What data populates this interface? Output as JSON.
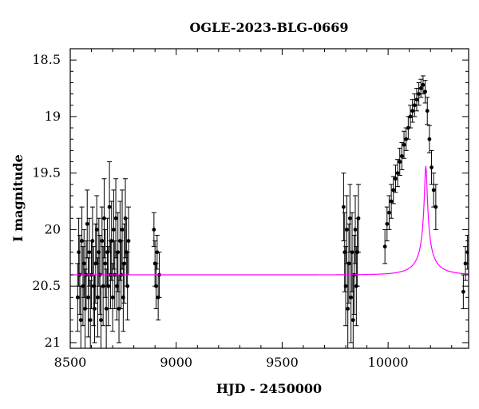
{
  "chart_data": {
    "type": "scatter",
    "title": "OGLE-2023-BLG-0669",
    "xlabel": "HJD - 2450000",
    "ylabel": "I magnitude",
    "xlim": [
      8500,
      10380
    ],
    "ylim": [
      21.05,
      18.4
    ],
    "y_inverted": true,
    "x_ticks": [
      8500,
      9000,
      9500,
      10000
    ],
    "y_ticks": [
      18.5,
      19,
      19.5,
      20,
      20.5,
      21
    ],
    "y_tick_labels": [
      "18.5",
      "19",
      "19.5",
      "20",
      "20.5",
      "21"
    ],
    "grid": false,
    "colors": {
      "data": "#000000",
      "model": "#ff00ff"
    },
    "series": [
      {
        "kind": "points_with_errorbars",
        "points": [
          [
            8535,
            20.6,
            0.3
          ],
          [
            8540,
            20.2,
            0.3
          ],
          [
            8545,
            20.4,
            0.35
          ],
          [
            8550,
            20.8,
            0.3
          ],
          [
            8555,
            20.1,
            0.3
          ],
          [
            8560,
            20.5,
            0.35
          ],
          [
            8565,
            20.3,
            0.3
          ],
          [
            8570,
            20.7,
            0.35
          ],
          [
            8575,
            20.4,
            0.3
          ],
          [
            8580,
            19.95,
            0.3
          ],
          [
            8585,
            20.6,
            0.35
          ],
          [
            8590,
            20.2,
            0.3
          ],
          [
            8595,
            20.8,
            0.35
          ],
          [
            8600,
            20.4,
            0.3
          ],
          [
            8605,
            20.1,
            0.3
          ],
          [
            8610,
            20.5,
            0.35
          ],
          [
            8615,
            20.7,
            0.3
          ],
          [
            8620,
            20.3,
            0.35
          ],
          [
            8625,
            20.0,
            0.3
          ],
          [
            8630,
            20.6,
            0.35
          ],
          [
            8635,
            20.2,
            0.3
          ],
          [
            8640,
            20.4,
            0.35
          ],
          [
            8645,
            20.8,
            0.3
          ],
          [
            8650,
            20.1,
            0.3
          ],
          [
            8655,
            20.5,
            0.35
          ],
          [
            8660,
            19.9,
            0.35
          ],
          [
            8665,
            20.3,
            0.3
          ],
          [
            8670,
            20.7,
            0.35
          ],
          [
            8675,
            20.2,
            0.3
          ],
          [
            8680,
            20.5,
            0.35
          ],
          [
            8685,
            19.8,
            0.4
          ],
          [
            8690,
            20.4,
            0.3
          ],
          [
            8695,
            20.1,
            0.35
          ],
          [
            8700,
            20.6,
            0.3
          ],
          [
            8705,
            20.0,
            0.35
          ],
          [
            8710,
            20.4,
            0.3
          ],
          [
            8715,
            19.9,
            0.35
          ],
          [
            8720,
            20.5,
            0.3
          ],
          [
            8725,
            20.2,
            0.35
          ],
          [
            8730,
            20.7,
            0.3
          ],
          [
            8735,
            20.1,
            0.35
          ],
          [
            8740,
            20.4,
            0.3
          ],
          [
            8745,
            20.0,
            0.35
          ],
          [
            8750,
            20.6,
            0.3
          ],
          [
            8755,
            20.3,
            0.35
          ],
          [
            8760,
            19.9,
            0.35
          ],
          [
            8765,
            20.2,
            0.3
          ],
          [
            8770,
            20.5,
            0.3
          ],
          [
            8775,
            20.1,
            0.3
          ],
          [
            8895,
            20.0,
            0.15
          ],
          [
            8900,
            20.3,
            0.2
          ],
          [
            8905,
            20.5,
            0.2
          ],
          [
            8910,
            20.2,
            0.15
          ],
          [
            8915,
            20.6,
            0.2
          ],
          [
            8920,
            20.4,
            0.2
          ],
          [
            9790,
            19.8,
            0.3
          ],
          [
            9795,
            20.2,
            0.35
          ],
          [
            9800,
            20.5,
            0.35
          ],
          [
            9805,
            20.0,
            0.3
          ],
          [
            9810,
            20.7,
            0.4
          ],
          [
            9815,
            20.3,
            0.35
          ],
          [
            9820,
            19.9,
            0.3
          ],
          [
            9825,
            20.6,
            0.4
          ],
          [
            9830,
            20.2,
            0.35
          ],
          [
            9835,
            20.8,
            0.4
          ],
          [
            9840,
            20.4,
            0.35
          ],
          [
            9845,
            20.0,
            0.3
          ],
          [
            9850,
            20.5,
            0.35
          ],
          [
            9855,
            20.2,
            0.3
          ],
          [
            9860,
            19.9,
            0.3
          ],
          [
            9985,
            20.15,
            0.15
          ],
          [
            9995,
            19.95,
            0.15
          ],
          [
            10005,
            19.85,
            0.15
          ],
          [
            10015,
            19.75,
            0.15
          ],
          [
            10025,
            19.65,
            0.12
          ],
          [
            10035,
            19.55,
            0.12
          ],
          [
            10045,
            19.5,
            0.12
          ],
          [
            10055,
            19.4,
            0.12
          ],
          [
            10065,
            19.35,
            0.12
          ],
          [
            10075,
            19.25,
            0.12
          ],
          [
            10085,
            19.2,
            0.1
          ],
          [
            10095,
            19.1,
            0.1
          ],
          [
            10105,
            19.0,
            0.1
          ],
          [
            10115,
            18.95,
            0.1
          ],
          [
            10125,
            18.9,
            0.1
          ],
          [
            10135,
            18.85,
            0.1
          ],
          [
            10145,
            18.8,
            0.1
          ],
          [
            10155,
            18.75,
            0.08
          ],
          [
            10165,
            18.72,
            0.08
          ],
          [
            10175,
            18.78,
            0.1
          ],
          [
            10185,
            18.95,
            0.12
          ],
          [
            10195,
            19.2,
            0.12
          ],
          [
            10205,
            19.45,
            0.15
          ],
          [
            10215,
            19.65,
            0.15
          ],
          [
            10225,
            19.8,
            0.2
          ],
          [
            10355,
            20.55,
            0.15
          ],
          [
            10365,
            20.3,
            0.15
          ],
          [
            10375,
            20.2,
            0.15
          ]
        ]
      },
      {
        "kind": "model_curve",
        "model": {
          "t0": 10178,
          "tE": 118,
          "u0": 0.05,
          "baseline": 20.4,
          "fs": 0.075
        }
      }
    ]
  }
}
